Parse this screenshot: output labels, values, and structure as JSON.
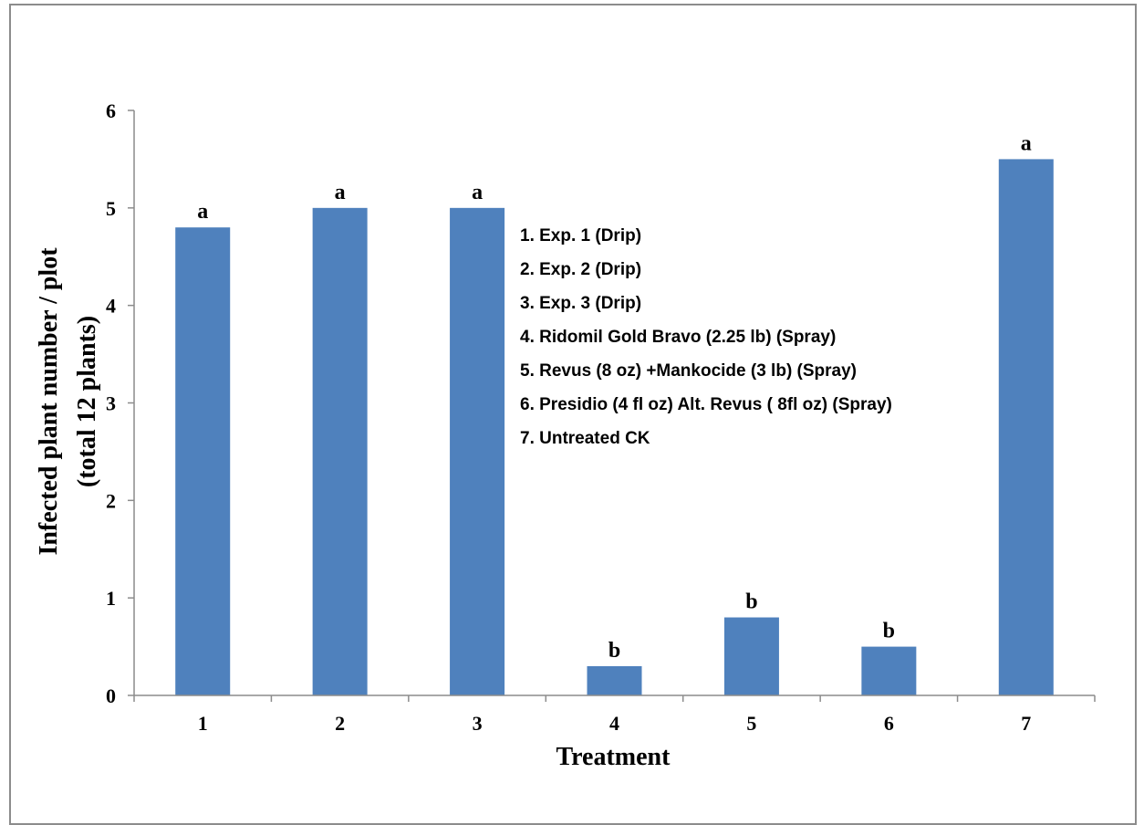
{
  "chart_data": {
    "type": "bar",
    "categories": [
      "1",
      "2",
      "3",
      "4",
      "5",
      "6",
      "7"
    ],
    "values": [
      4.8,
      5.0,
      5.0,
      0.3,
      0.8,
      0.5,
      5.5
    ],
    "bar_labels": [
      "a",
      "a",
      "a",
      "b",
      "b",
      "b",
      "a"
    ],
    "xlabel": "Treatment",
    "ylabel_line1": "Infected plant number / plot",
    "ylabel_line2": "(total 12 plants)",
    "ylim": [
      0,
      6
    ],
    "yticks": [
      0,
      1,
      2,
      3,
      4,
      5,
      6
    ],
    "bar_color": "#4f81bd",
    "grid": false,
    "legend_placement": "center",
    "legend_entries": [
      "1. Exp. 1 (Drip)",
      "2. Exp. 2 (Drip)",
      "3. Exp. 3 (Drip)",
      "4. Ridomil Gold Bravo (2.25 lb) (Spray)",
      "5. Revus (8 oz) +Mankocide (3 lb) (Spray)",
      "6. Presidio (4 fl oz) Alt. Revus ( 8fl oz) (Spray)",
      "7. Untreated CK"
    ]
  }
}
